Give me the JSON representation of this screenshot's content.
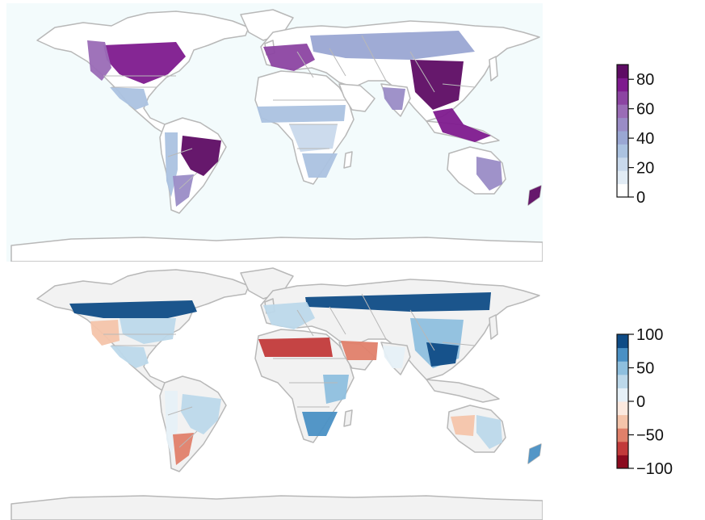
{
  "maps": [
    {
      "name": "top",
      "background": "#f3fbfc",
      "land": "#ffffff",
      "border": "#b8b8b8",
      "legend": {
        "ticks": [
          "0",
          "20",
          "40",
          "60",
          "80"
        ],
        "min": 0,
        "max": 90,
        "colors": [
          "#ffffff",
          "#e2ecf5",
          "#c9d9ec",
          "#abc2e0",
          "#9aa7d3",
          "#9a8cc6",
          "#9a6cb6",
          "#8c44a2",
          "#7e1a8e",
          "#5e0c64"
        ]
      },
      "regions": [
        {
          "id": "north-america-east",
          "value": 75
        },
        {
          "id": "north-america-west",
          "value": 55
        },
        {
          "id": "mexico",
          "value": 30
        },
        {
          "id": "brazil",
          "value": 82
        },
        {
          "id": "andes",
          "value": 35
        },
        {
          "id": "argentina",
          "value": 45
        },
        {
          "id": "europe",
          "value": 70
        },
        {
          "id": "russia",
          "value": 38
        },
        {
          "id": "sahel",
          "value": 28
        },
        {
          "id": "central-africa",
          "value": 22
        },
        {
          "id": "southern-africa",
          "value": 30
        },
        {
          "id": "india",
          "value": 45
        },
        {
          "id": "china",
          "value": 88
        },
        {
          "id": "southeast-asia",
          "value": 80
        },
        {
          "id": "australia-east",
          "value": 45
        },
        {
          "id": "new-zealand",
          "value": 85
        }
      ]
    },
    {
      "name": "bottom",
      "background": "#ffffff",
      "land": "#f2f2f2",
      "border": "#b8b8b8",
      "legend": {
        "ticks": [
          "−100",
          "−50",
          "0",
          "50",
          "100"
        ],
        "min": -100,
        "max": 100,
        "colors": [
          "#8b0a1e",
          "#c23a3a",
          "#e0806a",
          "#f4c4aa",
          "#fbe9df",
          "#e6f0f7",
          "#bcd8ea",
          "#8ebfde",
          "#4a90c4",
          "#0f4c86"
        ]
      },
      "regions": [
        {
          "id": "canada-boreal",
          "value": 95
        },
        {
          "id": "usa-east",
          "value": 35
        },
        {
          "id": "usa-west",
          "value": -30
        },
        {
          "id": "mexico",
          "value": 20
        },
        {
          "id": "brazil",
          "value": 25
        },
        {
          "id": "andes",
          "value": 15
        },
        {
          "id": "argentina",
          "value": -55
        },
        {
          "id": "siberia",
          "value": 95
        },
        {
          "id": "europe",
          "value": 30
        },
        {
          "id": "north-africa",
          "value": -70
        },
        {
          "id": "middle-east",
          "value": -60
        },
        {
          "id": "east-africa",
          "value": 55
        },
        {
          "id": "southern-africa",
          "value": 60
        },
        {
          "id": "china",
          "value": 50
        },
        {
          "id": "south-china",
          "value": 80
        },
        {
          "id": "india",
          "value": 15
        },
        {
          "id": "australia-east",
          "value": 35
        },
        {
          "id": "australia-west",
          "value": -35
        },
        {
          "id": "new-zealand",
          "value": 75
        }
      ]
    }
  ]
}
